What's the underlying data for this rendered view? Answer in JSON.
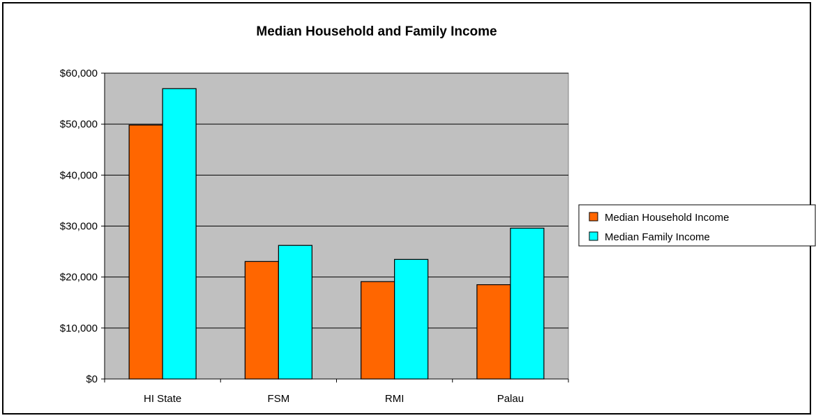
{
  "chart_data": {
    "type": "bar",
    "title": "Median Household and Family Income",
    "xlabel": "",
    "ylabel": "",
    "categories": [
      "HI State",
      "FSM",
      "RMI",
      "Palau"
    ],
    "series": [
      {
        "name": "Median Household Income",
        "values": [
          49820,
          23050,
          19100,
          18500
        ],
        "color": "#ff6600"
      },
      {
        "name": "Median Family Income",
        "values": [
          56960,
          26210,
          23460,
          29590
        ],
        "color": "#00ffff"
      }
    ],
    "ylim": [
      0,
      60000
    ],
    "yticks": [
      "$0",
      "$10,000",
      "$20,000",
      "$30,000",
      "$40,000",
      "$50,000",
      "$60,000"
    ],
    "ytick_values": [
      0,
      10000,
      20000,
      30000,
      40000,
      50000,
      60000
    ],
    "grid": true,
    "legend_position": "right",
    "plot_background": "#c0c0c0"
  }
}
